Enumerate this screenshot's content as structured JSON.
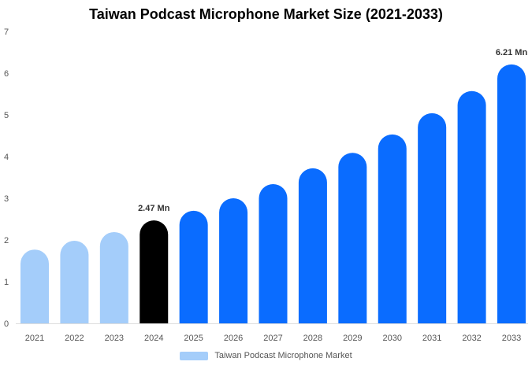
{
  "chart_data": {
    "type": "bar",
    "title": "Taiwan Podcast Microphone Market Size (2021-2033)",
    "categories": [
      "2021",
      "2022",
      "2023",
      "2024",
      "2025",
      "2026",
      "2027",
      "2028",
      "2029",
      "2030",
      "2031",
      "2032",
      "2033"
    ],
    "series": [
      {
        "name": "Taiwan Podcast Microphone Market",
        "values": [
          1.77,
          1.98,
          2.19,
          2.47,
          2.7,
          3.0,
          3.34,
          3.72,
          4.09,
          4.53,
          5.04,
          5.57,
          6.21
        ]
      }
    ],
    "data_labels": {
      "3": "2.47 Mn",
      "12": "6.21 Mn"
    },
    "ylim": [
      0,
      7
    ],
    "yticks": [
      0,
      1,
      2,
      3,
      4,
      5,
      6,
      7
    ],
    "xlabel": "",
    "ylabel": "",
    "legend_position": "bottom",
    "colors": {
      "historical": "#a4cdfa",
      "base_year": "#000000",
      "forecast": "#0a6cff"
    }
  }
}
